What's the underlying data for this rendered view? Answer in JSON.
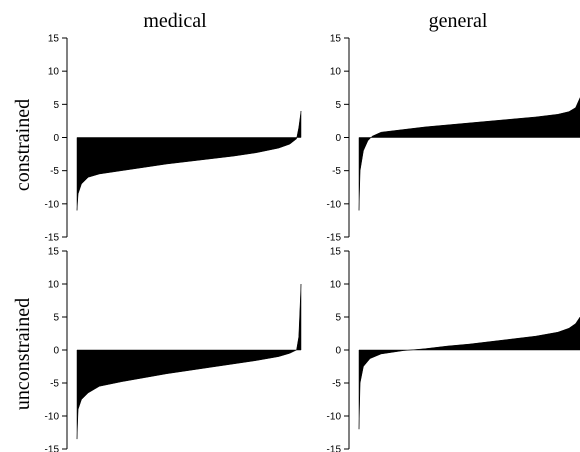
{
  "chart_data": {
    "type": "area",
    "title": "",
    "columns": [
      "medical",
      "general"
    ],
    "rows": [
      "constrained",
      "unconstrained"
    ],
    "ylim": [
      -15,
      15
    ],
    "yticks": [
      15,
      10,
      5,
      0,
      -5,
      -10,
      -15
    ],
    "description_of_x": "observations sorted by value (no x axis shown)",
    "panels": [
      {
        "row": "constrained",
        "column": "medical",
        "x": [
          0,
          0.005,
          0.02,
          0.05,
          0.1,
          0.2,
          0.3,
          0.4,
          0.5,
          0.6,
          0.7,
          0.8,
          0.9,
          0.95,
          0.98,
          0.99,
          1.0
        ],
        "y": [
          -11,
          -8.5,
          -7,
          -6,
          -5.5,
          -5,
          -4.5,
          -4,
          -3.6,
          -3.2,
          -2.8,
          -2.3,
          -1.6,
          -1,
          -0.2,
          1.5,
          4
        ]
      },
      {
        "row": "constrained",
        "column": "general",
        "x": [
          0,
          0.005,
          0.02,
          0.04,
          0.06,
          0.1,
          0.2,
          0.3,
          0.4,
          0.5,
          0.6,
          0.7,
          0.8,
          0.9,
          0.95,
          0.98,
          1.0
        ],
        "y": [
          -11,
          -5,
          -2,
          -0.5,
          0.2,
          0.8,
          1.2,
          1.6,
          1.9,
          2.2,
          2.5,
          2.8,
          3.1,
          3.5,
          3.9,
          4.5,
          6
        ]
      },
      {
        "row": "unconstrained",
        "column": "medical",
        "x": [
          0,
          0.005,
          0.02,
          0.05,
          0.1,
          0.2,
          0.3,
          0.4,
          0.5,
          0.6,
          0.7,
          0.8,
          0.9,
          0.95,
          0.98,
          0.99,
          1.0
        ],
        "y": [
          -13.5,
          -9,
          -7.5,
          -6.5,
          -5.5,
          -4.8,
          -4.2,
          -3.6,
          -3.1,
          -2.6,
          -2.1,
          -1.6,
          -1,
          -0.5,
          0,
          2,
          10
        ]
      },
      {
        "row": "unconstrained",
        "column": "general",
        "x": [
          0,
          0.005,
          0.02,
          0.05,
          0.1,
          0.2,
          0.3,
          0.4,
          0.5,
          0.6,
          0.7,
          0.8,
          0.9,
          0.95,
          0.98,
          1.0
        ],
        "y": [
          -12,
          -5,
          -2.5,
          -1.3,
          -0.6,
          -0.1,
          0.2,
          0.6,
          0.9,
          1.3,
          1.7,
          2.1,
          2.7,
          3.3,
          4,
          5
        ]
      }
    ]
  }
}
